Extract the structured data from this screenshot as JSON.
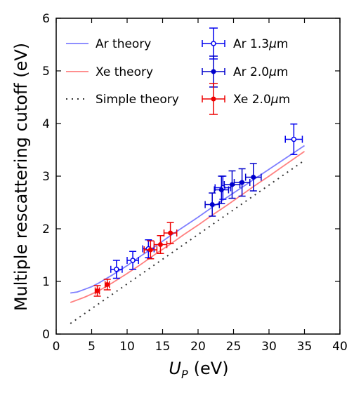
{
  "chart_data": {
    "type": "scatter",
    "title": "",
    "xlabel": {
      "symbol": "U",
      "subscript": "P",
      "unit": "(eV)"
    },
    "ylabel": "Multiple rescattering cutoff (eV)",
    "xlim": [
      0,
      40
    ],
    "ylim": [
      0,
      6
    ],
    "xticks": [
      0,
      5,
      10,
      15,
      20,
      25,
      30,
      35,
      40
    ],
    "yticks": [
      0,
      1,
      2,
      3,
      4,
      5,
      6
    ],
    "grid": false,
    "legend_position": "top-left",
    "lines": [
      {
        "name": "Ar theory",
        "style": "solid",
        "color": "#7f7fff",
        "x": [
          2,
          3,
          4,
          5,
          6,
          8,
          10,
          12,
          14,
          16,
          18,
          20,
          22,
          24,
          26,
          28,
          30,
          32,
          35
        ],
        "y": [
          0.78,
          0.8,
          0.85,
          0.9,
          0.97,
          1.13,
          1.3,
          1.49,
          1.67,
          1.86,
          2.04,
          2.22,
          2.41,
          2.59,
          2.77,
          2.95,
          3.13,
          3.31,
          3.58
        ]
      },
      {
        "name": "Xe theory",
        "style": "solid",
        "color": "#ff7f7f",
        "x": [
          2,
          3,
          4,
          5,
          6,
          8,
          10,
          12,
          14,
          16,
          18,
          20,
          22,
          24,
          26,
          28,
          30,
          32,
          35
        ],
        "y": [
          0.6,
          0.65,
          0.7,
          0.76,
          0.82,
          0.98,
          1.15,
          1.33,
          1.52,
          1.7,
          1.89,
          2.07,
          2.26,
          2.44,
          2.63,
          2.82,
          3.0,
          3.19,
          3.47
        ]
      },
      {
        "name": "Simple theory",
        "style": "dotted",
        "color": "#333333",
        "x": [
          2,
          35
        ],
        "y": [
          0.2,
          3.3
        ]
      }
    ],
    "series": [
      {
        "name": "Ar 1.3",
        "unit_symbol": "μ",
        "unit_suffix": "m",
        "color": "#0000ee",
        "marker": "open-circle",
        "points": [
          {
            "x": 8.5,
            "y": 1.23,
            "xerr": 0.8,
            "yerr": 0.17
          },
          {
            "x": 10.8,
            "y": 1.4,
            "xerr": 0.8,
            "yerr": 0.17
          },
          {
            "x": 13.0,
            "y": 1.62,
            "xerr": 0.8,
            "yerr": 0.17
          },
          {
            "x": 23.5,
            "y": 2.78,
            "xerr": 1.1,
            "yerr": 0.22
          },
          {
            "x": 33.5,
            "y": 3.7,
            "xerr": 1.2,
            "yerr": 0.29
          }
        ]
      },
      {
        "name": "Ar 2.0",
        "unit_symbol": "μ",
        "unit_suffix": "m",
        "color": "#0000cc",
        "marker": "filled-circle",
        "points": [
          {
            "x": 22.0,
            "y": 2.46,
            "xerr": 1.0,
            "yerr": 0.22
          },
          {
            "x": 23.3,
            "y": 2.74,
            "xerr": 1.0,
            "yerr": 0.26
          },
          {
            "x": 24.8,
            "y": 2.84,
            "xerr": 1.1,
            "yerr": 0.26
          },
          {
            "x": 26.2,
            "y": 2.88,
            "xerr": 1.1,
            "yerr": 0.26
          },
          {
            "x": 27.8,
            "y": 2.98,
            "xerr": 1.1,
            "yerr": 0.26
          }
        ]
      },
      {
        "name": "Xe 2.0",
        "unit_symbol": "μ",
        "unit_suffix": "m",
        "color": "#ee0000",
        "marker": "filled-circle",
        "points": [
          {
            "x": 5.8,
            "y": 0.82,
            "xerr": 0.3,
            "yerr": 0.1
          },
          {
            "x": 7.2,
            "y": 0.94,
            "xerr": 0.3,
            "yerr": 0.1
          },
          {
            "x": 13.3,
            "y": 1.6,
            "xerr": 0.9,
            "yerr": 0.17
          },
          {
            "x": 14.7,
            "y": 1.7,
            "xerr": 0.9,
            "yerr": 0.17
          },
          {
            "x": 16.1,
            "y": 1.92,
            "xerr": 0.9,
            "yerr": 0.2
          }
        ]
      }
    ]
  }
}
